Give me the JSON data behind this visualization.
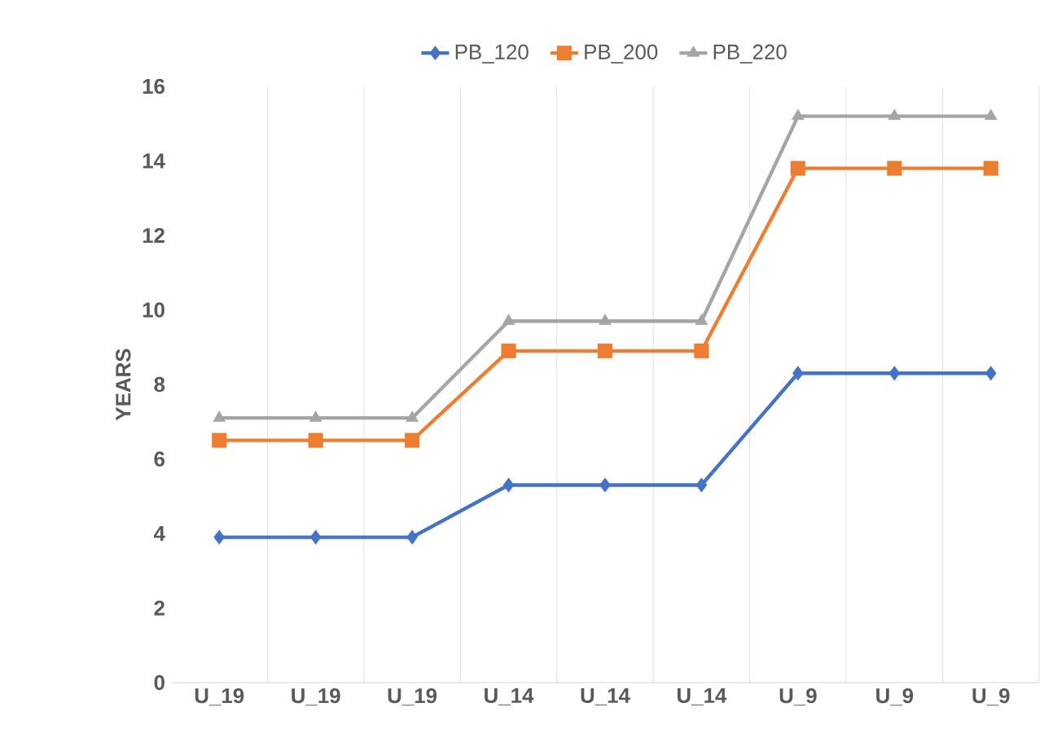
{
  "chart_data": {
    "type": "line",
    "ylabel": "YEARS",
    "categories": [
      "U_19",
      "U_19",
      "U_19",
      "U_14",
      "U_14",
      "U_14",
      "U_9",
      "U_9",
      "U_9"
    ],
    "series": [
      {
        "name": "PB_120",
        "color": "#4472c4",
        "marker": "diamond",
        "values": [
          3.9,
          3.9,
          3.9,
          5.3,
          5.3,
          5.3,
          8.3,
          8.3,
          8.3
        ]
      },
      {
        "name": "PB_200",
        "color": "#ed7d31",
        "marker": "square",
        "values": [
          6.5,
          6.5,
          6.5,
          8.9,
          8.9,
          8.9,
          13.8,
          13.8,
          13.8
        ]
      },
      {
        "name": "PB_220",
        "color": "#a5a5a5",
        "marker": "triangle",
        "values": [
          7.1,
          7.1,
          7.1,
          9.7,
          9.7,
          9.7,
          15.2,
          15.2,
          15.2
        ]
      }
    ],
    "ylim": [
      0,
      16
    ],
    "yticks": [
      0,
      2,
      4,
      6,
      8,
      10,
      12,
      14,
      16
    ],
    "grid": "x",
    "legend": "top"
  }
}
